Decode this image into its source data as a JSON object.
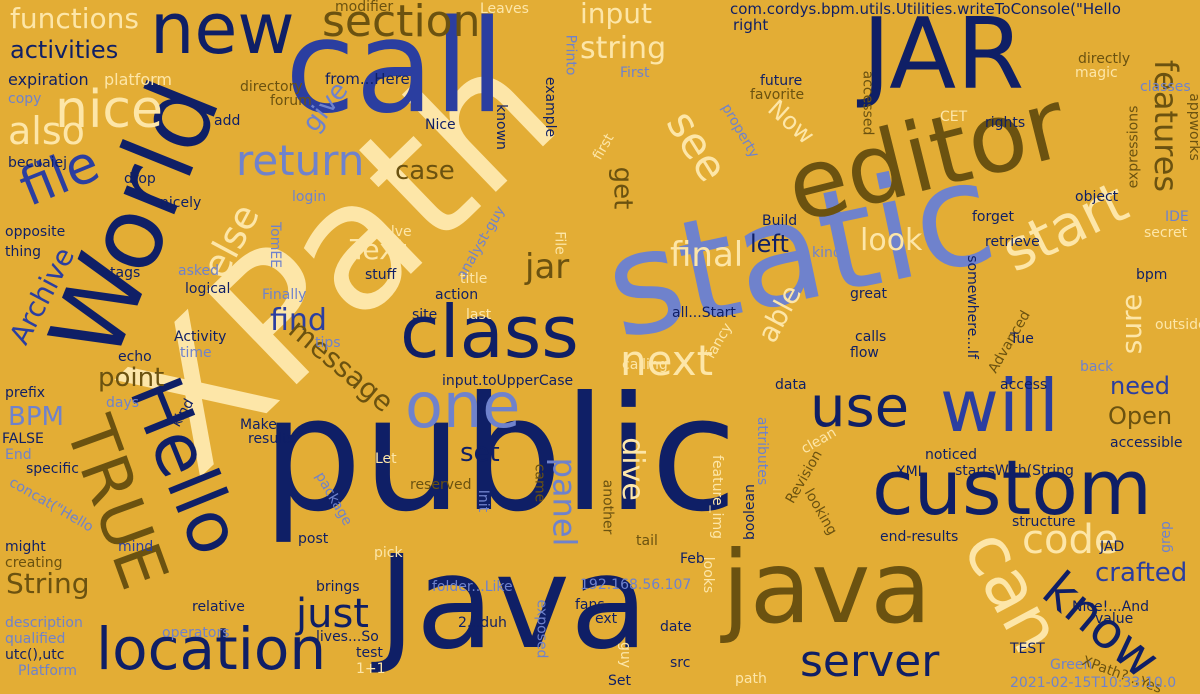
{
  "palette": {
    "background": "#e3ad35",
    "navy": "#0f1f66",
    "blue": "#2b3ea0",
    "periwinkle": "#6f82cc",
    "cream": "#fde6a8",
    "olive": "#6b5210"
  },
  "words": [
    {
      "text": "public",
      "color": "navy"
    },
    {
      "text": "XPath",
      "color": "cream"
    },
    {
      "text": "static",
      "color": "periwinkle"
    },
    {
      "text": "Java",
      "color": "navy"
    },
    {
      "text": "call",
      "color": "blue"
    },
    {
      "text": "World",
      "color": "navy"
    },
    {
      "text": "JAR",
      "color": "navy"
    },
    {
      "text": "editor",
      "color": "olive"
    },
    {
      "text": "java",
      "color": "olive"
    },
    {
      "text": "custom",
      "color": "navy"
    },
    {
      "text": "class",
      "color": "navy"
    },
    {
      "text": "Hello",
      "color": "navy"
    },
    {
      "text": "TRUE",
      "color": "olive"
    },
    {
      "text": "new",
      "color": "navy"
    },
    {
      "text": "location",
      "color": "navy"
    },
    {
      "text": "will",
      "color": "blue"
    },
    {
      "text": "one",
      "color": "periwinkle"
    },
    {
      "text": "can",
      "color": "cream"
    },
    {
      "text": "use",
      "color": "navy"
    },
    {
      "text": "server",
      "color": "navy"
    },
    {
      "text": "section",
      "color": "olive"
    },
    {
      "text": "nice",
      "color": "cream"
    },
    {
      "text": "file",
      "color": "blue"
    },
    {
      "text": "return",
      "color": "periwinkle"
    },
    {
      "text": "start",
      "color": "cream"
    },
    {
      "text": "know",
      "color": "navy"
    },
    {
      "text": "code",
      "color": "cream"
    },
    {
      "text": "just",
      "color": "navy"
    },
    {
      "text": "next",
      "color": "cream"
    },
    {
      "text": "see",
      "color": "cream"
    },
    {
      "text": "also",
      "color": "cream"
    },
    {
      "text": "Archive",
      "color": "blue"
    },
    {
      "text": "else",
      "color": "cream"
    },
    {
      "text": "features",
      "color": "olive"
    },
    {
      "text": "functions",
      "color": "cream"
    },
    {
      "text": "activities",
      "color": "navy"
    },
    {
      "text": "input",
      "color": "cream"
    },
    {
      "text": "string",
      "color": "cream"
    },
    {
      "text": "Text",
      "color": "cream"
    },
    {
      "text": "jar",
      "color": "olive"
    },
    {
      "text": "final",
      "color": "cream"
    },
    {
      "text": "left",
      "color": "navy"
    },
    {
      "text": "look",
      "color": "cream"
    },
    {
      "text": "able",
      "color": "cream"
    },
    {
      "text": "sure",
      "color": "cream"
    },
    {
      "text": "find",
      "color": "blue"
    },
    {
      "text": "point",
      "color": "olive"
    },
    {
      "text": "message",
      "color": "olive"
    },
    {
      "text": "need",
      "color": "blue"
    },
    {
      "text": "Open",
      "color": "olive"
    },
    {
      "text": "case",
      "color": "olive"
    },
    {
      "text": "give",
      "color": "periwinkle"
    },
    {
      "text": "Now",
      "color": "cream"
    },
    {
      "text": "get",
      "color": "olive"
    },
    {
      "text": "BPM",
      "color": "periwinkle"
    },
    {
      "text": "set",
      "color": "navy"
    },
    {
      "text": "dive",
      "color": "cream"
    },
    {
      "text": "panel",
      "color": "periwinkle"
    },
    {
      "text": "String",
      "color": "olive"
    },
    {
      "text": "crafted",
      "color": "blue"
    },
    {
      "text": "com.cordys.bpm.utils.Utilities.writeToConsole(\"Hello",
      "color": "navy"
    },
    {
      "text": "modifier",
      "color": "olive"
    },
    {
      "text": "Leaves",
      "color": "cream"
    },
    {
      "text": "expiration",
      "color": "navy"
    },
    {
      "text": "platform",
      "color": "cream"
    },
    {
      "text": "directory",
      "color": "olive"
    },
    {
      "text": "forum",
      "color": "olive"
    },
    {
      "text": "from...Here",
      "color": "navy"
    },
    {
      "text": "example",
      "color": "navy"
    },
    {
      "text": "Printo",
      "color": "periwinkle"
    },
    {
      "text": "First",
      "color": "periwinkle"
    },
    {
      "text": "right",
      "color": "navy"
    },
    {
      "text": "future",
      "color": "navy"
    },
    {
      "text": "favorite",
      "color": "olive"
    },
    {
      "text": "accessed",
      "color": "olive"
    },
    {
      "text": "directly",
      "color": "olive"
    },
    {
      "text": "magic",
      "color": "cream"
    },
    {
      "text": "classes",
      "color": "periwinkle"
    },
    {
      "text": "appworks",
      "color": "olive"
    },
    {
      "text": "expressions",
      "color": "olive"
    },
    {
      "text": "rights",
      "color": "navy"
    },
    {
      "text": "CET",
      "color": "cream"
    },
    {
      "text": "copy",
      "color": "periwinkle"
    },
    {
      "text": "add",
      "color": "navy"
    },
    {
      "text": "Nice",
      "color": "navy"
    },
    {
      "text": "known",
      "color": "navy"
    },
    {
      "text": "property",
      "color": "periwinkle"
    },
    {
      "text": "first",
      "color": "cream"
    },
    {
      "text": "becuaiej",
      "color": "navy"
    },
    {
      "text": "drop",
      "color": "navy"
    },
    {
      "text": "logical",
      "color": "navy"
    },
    {
      "text": "nicely",
      "color": "navy"
    },
    {
      "text": "login",
      "color": "periwinkle"
    },
    {
      "text": "object",
      "color": "navy"
    },
    {
      "text": "secret",
      "color": "cream"
    },
    {
      "text": "IDE",
      "color": "periwinkle"
    },
    {
      "text": "forget",
      "color": "navy"
    },
    {
      "text": "retrieve",
      "color": "navy"
    },
    {
      "text": "opposite",
      "color": "navy"
    },
    {
      "text": "thing",
      "color": "navy"
    },
    {
      "text": "TomEE",
      "color": "periwinkle"
    },
    {
      "text": "solve",
      "color": "cream"
    },
    {
      "text": "analyst-guy",
      "color": "periwinkle"
    },
    {
      "text": "File",
      "color": "cream"
    },
    {
      "text": "Build",
      "color": "navy"
    },
    {
      "text": "kinds",
      "color": "periwinkle"
    },
    {
      "text": "somewhere...If",
      "color": "navy"
    },
    {
      "text": "bpm",
      "color": "navy"
    },
    {
      "text": "tags",
      "color": "navy"
    },
    {
      "text": "asked",
      "color": "periwinkle"
    },
    {
      "text": "Activity",
      "color": "navy"
    },
    {
      "text": "time",
      "color": "periwinkle"
    },
    {
      "text": "Finally",
      "color": "periwinkle"
    },
    {
      "text": "stuff",
      "color": "navy"
    },
    {
      "text": "title",
      "color": "cream"
    },
    {
      "text": "action",
      "color": "navy"
    },
    {
      "text": "great",
      "color": "navy"
    },
    {
      "text": "outside",
      "color": "cream"
    },
    {
      "text": "site",
      "color": "navy"
    },
    {
      "text": "last",
      "color": "cream"
    },
    {
      "text": "all...Start",
      "color": "navy"
    },
    {
      "text": "Advanced",
      "color": "olive"
    },
    {
      "text": "Tue",
      "color": "navy"
    },
    {
      "text": "fancy",
      "color": "cream"
    },
    {
      "text": "calls",
      "color": "navy"
    },
    {
      "text": "flow",
      "color": "navy"
    },
    {
      "text": "tips",
      "color": "periwinkle"
    },
    {
      "text": "echo",
      "color": "navy"
    },
    {
      "text": "input.toUpperCase",
      "color": "navy"
    },
    {
      "text": "calling",
      "color": "cream"
    },
    {
      "text": "data",
      "color": "navy"
    },
    {
      "text": "back",
      "color": "periwinkle"
    },
    {
      "text": "access",
      "color": "navy"
    },
    {
      "text": "prefix",
      "color": "navy"
    },
    {
      "text": "days",
      "color": "periwinkle"
    },
    {
      "text": "kind",
      "color": "navy"
    },
    {
      "text": "FALSE",
      "color": "navy"
    },
    {
      "text": "End",
      "color": "periwinkle"
    },
    {
      "text": "Make",
      "color": "navy"
    },
    {
      "text": "results",
      "color": "navy"
    },
    {
      "text": "attributes",
      "color": "periwinkle"
    },
    {
      "text": "clean",
      "color": "cream"
    },
    {
      "text": "accessible",
      "color": "navy"
    },
    {
      "text": "specific",
      "color": "navy"
    },
    {
      "text": "Let",
      "color": "cream"
    },
    {
      "text": "concat(\"Hello",
      "color": "periwinkle"
    },
    {
      "text": "package",
      "color": "periwinkle"
    },
    {
      "text": "reserved",
      "color": "olive"
    },
    {
      "text": "came",
      "color": "olive"
    },
    {
      "text": "Init",
      "color": "periwinkle"
    },
    {
      "text": "another",
      "color": "olive"
    },
    {
      "text": "feature_img",
      "color": "cream"
    },
    {
      "text": "boolean",
      "color": "navy"
    },
    {
      "text": "Revision",
      "color": "olive"
    },
    {
      "text": "noticed",
      "color": "navy"
    },
    {
      "text": "XML",
      "color": "navy"
    },
    {
      "text": "startsWith(String",
      "color": "navy"
    },
    {
      "text": "looking",
      "color": "olive"
    },
    {
      "text": "structure",
      "color": "navy"
    },
    {
      "text": "grep",
      "color": "periwinkle"
    },
    {
      "text": "JAD",
      "color": "navy"
    },
    {
      "text": "might",
      "color": "navy"
    },
    {
      "text": "mind",
      "color": "blue"
    },
    {
      "text": "post",
      "color": "navy"
    },
    {
      "text": "pick",
      "color": "cream"
    },
    {
      "text": "tail",
      "color": "olive"
    },
    {
      "text": "end-results",
      "color": "navy"
    },
    {
      "text": "creating",
      "color": "olive"
    },
    {
      "text": "Feb",
      "color": "navy"
    },
    {
      "text": "looks",
      "color": "cream"
    },
    {
      "text": "brings",
      "color": "navy"
    },
    {
      "text": "folder...Like",
      "color": "periwinkle"
    },
    {
      "text": "192.168.56.107",
      "color": "periwinkle"
    },
    {
      "text": "relative",
      "color": "navy"
    },
    {
      "text": "fans",
      "color": "navy"
    },
    {
      "text": "ext",
      "color": "navy"
    },
    {
      "text": "Nice!...And",
      "color": "navy"
    },
    {
      "text": "value",
      "color": "navy"
    },
    {
      "text": "description",
      "color": "periwinkle"
    },
    {
      "text": "operators",
      "color": "periwinkle"
    },
    {
      "text": "lives...So",
      "color": "navy"
    },
    {
      "text": "2...duh",
      "color": "navy"
    },
    {
      "text": "exposed",
      "color": "periwinkle"
    },
    {
      "text": "date",
      "color": "navy"
    },
    {
      "text": "qualified",
      "color": "periwinkle"
    },
    {
      "text": "utc(),utc",
      "color": "navy"
    },
    {
      "text": "test",
      "color": "navy"
    },
    {
      "text": "1+1",
      "color": "cream"
    },
    {
      "text": "guy",
      "color": "cream"
    },
    {
      "text": "src",
      "color": "navy"
    },
    {
      "text": "TEST",
      "color": "navy"
    },
    {
      "text": "Green",
      "color": "periwinkle"
    },
    {
      "text": "XPath?...Yes",
      "color": "olive"
    },
    {
      "text": "Platform",
      "color": "periwinkle"
    },
    {
      "text": "Set",
      "color": "navy"
    },
    {
      "text": "path",
      "color": "cream"
    },
    {
      "text": "2021-02-15T10:33:10.0",
      "color": "periwinkle"
    }
  ]
}
